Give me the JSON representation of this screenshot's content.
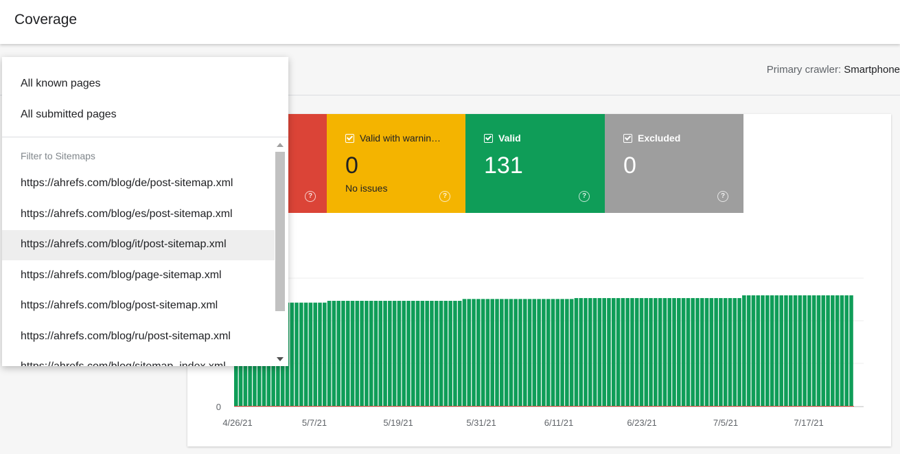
{
  "header": {
    "title": "Coverage"
  },
  "filter": {
    "crawler_label": "Primary crawler:",
    "crawler_value": "Smartphone"
  },
  "dropdown": {
    "items": [
      "All known pages",
      "All submitted pages"
    ],
    "section_title": "Filter to Sitemaps",
    "sitemaps": [
      "https://ahrefs.com/blog/de/post-sitemap.xml",
      "https://ahrefs.com/blog/es/post-sitemap.xml",
      "https://ahrefs.com/blog/it/post-sitemap.xml",
      "https://ahrefs.com/blog/page-sitemap.xml",
      "https://ahrefs.com/blog/post-sitemap.xml",
      "https://ahrefs.com/blog/ru/post-sitemap.xml",
      "https://ahrefs.com/blog/sitemap_index.xml"
    ],
    "highlighted_index": 2
  },
  "tiles": [
    {
      "label": "",
      "value": "",
      "sub": "",
      "color": "#db4437"
    },
    {
      "label": "Valid with warnin…",
      "value": "0",
      "sub": "No issues",
      "color": "#f4b400"
    },
    {
      "label": "Valid",
      "value": "131",
      "sub": "",
      "color": "#0f9d58"
    },
    {
      "label": "Excluded",
      "value": "0",
      "sub": "",
      "color": "#9e9e9e"
    }
  ],
  "chart_data": {
    "type": "bar",
    "xlabels": [
      "4/26/21",
      "5/7/21",
      "5/19/21",
      "5/31/21",
      "6/11/21",
      "6/23/21",
      "7/5/21",
      "7/17/21"
    ],
    "y_tick_labels": [
      "0"
    ],
    "series": [
      {
        "color": "#0f9d58",
        "values": [
          114,
          114,
          114,
          114,
          114,
          114,
          114,
          114,
          114,
          114,
          114,
          114,
          114,
          114,
          114,
          114,
          114,
          114,
          114,
          114,
          116,
          116,
          116,
          116,
          116,
          116,
          116,
          116,
          116,
          116,
          116,
          116,
          116,
          116,
          116,
          116,
          116,
          116,
          116,
          116,
          116,
          116,
          116,
          116,
          116,
          116,
          116,
          116,
          116,
          118,
          118,
          118,
          118,
          118,
          118,
          118,
          118,
          118,
          118,
          118,
          118,
          118,
          118,
          118,
          118,
          118,
          118,
          118,
          118,
          118,
          118,
          118,
          118,
          119,
          119,
          119,
          119,
          119,
          119,
          119,
          119,
          119,
          119,
          119,
          119,
          119,
          119,
          119,
          119,
          119,
          119,
          119,
          119,
          119,
          119,
          119,
          119,
          119,
          119,
          119,
          119,
          119,
          119,
          119,
          119,
          119,
          119,
          119,
          119,
          122,
          122,
          122,
          122,
          122,
          122,
          122,
          122,
          122,
          122,
          122,
          122,
          122,
          122,
          122,
          122,
          122,
          122,
          122,
          122,
          122,
          122,
          122,
          122
        ]
      }
    ],
    "colors": {
      "valid": "#0f9d58",
      "error": "#db4437"
    }
  }
}
